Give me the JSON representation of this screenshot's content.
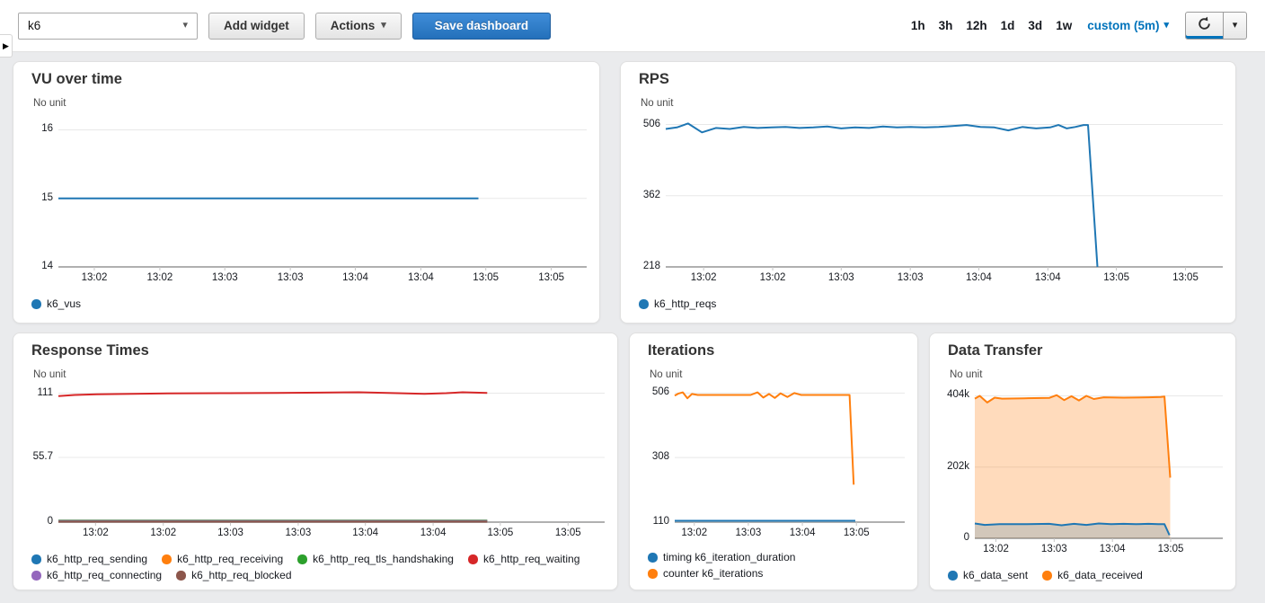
{
  "toolbar": {
    "dashboard_name": "k6",
    "add_widget": "Add widget",
    "actions": "Actions",
    "save_dashboard": "Save dashboard",
    "time_ranges": [
      "1h",
      "3h",
      "12h",
      "1d",
      "3d",
      "1w"
    ],
    "custom_range": "custom (5m)",
    "link_color": "#0073bb"
  },
  "icons": {
    "sidebar_expand": "▶",
    "caret_down": "▾"
  },
  "palette": {
    "blue": "#1f77b4",
    "orange": "#ff7f0e",
    "green": "#2ca02c",
    "red": "#d62728",
    "purple": "#9467bd",
    "brown": "#8c564b"
  },
  "chart_data": [
    {
      "type": "line",
      "title": "VU over time",
      "unit_label": "No unit",
      "ylim": [
        14,
        16.15
      ],
      "yticks": [
        {
          "value": 16,
          "label": "16"
        },
        {
          "value": 15,
          "label": "15"
        },
        {
          "value": 14,
          "label": "14"
        }
      ],
      "xticks": [
        {
          "f": 0.068,
          "label": "13:02"
        },
        {
          "f": 0.192,
          "label": "13:02"
        },
        {
          "f": 0.315,
          "label": "13:03"
        },
        {
          "f": 0.439,
          "label": "13:03"
        },
        {
          "f": 0.562,
          "label": "13:04"
        },
        {
          "f": 0.686,
          "label": "13:04"
        },
        {
          "f": 0.809,
          "label": "13:05"
        },
        {
          "f": 0.933,
          "label": "13:05"
        }
      ],
      "series": [
        {
          "name": "k6_vus",
          "color": "#1f77b4",
          "fill": false,
          "points": [
            [
              0,
              15
            ],
            [
              0.795,
              15
            ]
          ]
        }
      ],
      "legend": [
        {
          "label": "k6_vus",
          "color": "#1f77b4"
        }
      ]
    },
    {
      "type": "line",
      "title": "RPS",
      "unit_label": "No unit",
      "ylim": [
        218,
        516
      ],
      "yticks": [
        {
          "value": 506,
          "label": "506"
        },
        {
          "value": 362,
          "label": "362"
        },
        {
          "value": 218,
          "label": "218"
        }
      ],
      "xticks": [
        {
          "f": 0.068,
          "label": "13:02"
        },
        {
          "f": 0.192,
          "label": "13:02"
        },
        {
          "f": 0.315,
          "label": "13:03"
        },
        {
          "f": 0.439,
          "label": "13:03"
        },
        {
          "f": 0.562,
          "label": "13:04"
        },
        {
          "f": 0.686,
          "label": "13:04"
        },
        {
          "f": 0.809,
          "label": "13:05"
        },
        {
          "f": 0.933,
          "label": "13:05"
        }
      ],
      "series": [
        {
          "name": "k6_http_reqs",
          "color": "#1f77b4",
          "fill": false,
          "points": [
            [
              0,
              497
            ],
            [
              0.02,
              500
            ],
            [
              0.04,
              508
            ],
            [
              0.065,
              490
            ],
            [
              0.09,
              499
            ],
            [
              0.115,
              497
            ],
            [
              0.14,
              501
            ],
            [
              0.165,
              499
            ],
            [
              0.19,
              500
            ],
            [
              0.215,
              501
            ],
            [
              0.24,
              499
            ],
            [
              0.265,
              500
            ],
            [
              0.29,
              502
            ],
            [
              0.315,
              498
            ],
            [
              0.34,
              500
            ],
            [
              0.365,
              499
            ],
            [
              0.39,
              502
            ],
            [
              0.415,
              500
            ],
            [
              0.44,
              501
            ],
            [
              0.465,
              500
            ],
            [
              0.49,
              501
            ],
            [
              0.515,
              503
            ],
            [
              0.54,
              505
            ],
            [
              0.565,
              501
            ],
            [
              0.59,
              500
            ],
            [
              0.615,
              494
            ],
            [
              0.64,
              501
            ],
            [
              0.665,
              498
            ],
            [
              0.69,
              500
            ],
            [
              0.705,
              505
            ],
            [
              0.72,
              498
            ],
            [
              0.735,
              501
            ],
            [
              0.75,
              505
            ],
            [
              0.758,
              505
            ],
            [
              0.775,
              218
            ]
          ]
        }
      ],
      "legend": [
        {
          "label": "k6_http_reqs",
          "color": "#1f77b4"
        }
      ]
    },
    {
      "type": "line",
      "title": "Response Times",
      "unit_label": "No unit",
      "ylim": [
        0,
        114.5
      ],
      "yticks": [
        {
          "value": 111,
          "label": "111"
        },
        {
          "value": 55.7,
          "label": "55.7"
        },
        {
          "value": 0,
          "label": "0"
        }
      ],
      "xticks": [
        {
          "f": 0.068,
          "label": "13:02"
        },
        {
          "f": 0.192,
          "label": "13:02"
        },
        {
          "f": 0.315,
          "label": "13:03"
        },
        {
          "f": 0.439,
          "label": "13:03"
        },
        {
          "f": 0.562,
          "label": "13:04"
        },
        {
          "f": 0.686,
          "label": "13:04"
        },
        {
          "f": 0.809,
          "label": "13:05"
        },
        {
          "f": 0.933,
          "label": "13:05"
        }
      ],
      "series": [
        {
          "name": "k6_http_req_sending",
          "color": "#1f77b4",
          "fill": false,
          "points": [
            [
              0,
              1.4
            ],
            [
              0.785,
              1.4
            ]
          ]
        },
        {
          "name": "k6_http_req_receiving",
          "color": "#ff7f0e",
          "fill": false,
          "points": [
            [
              0,
              1.1
            ],
            [
              0.785,
              1.1
            ]
          ]
        },
        {
          "name": "k6_http_req_tls_handshaking",
          "color": "#2ca02c",
          "fill": false,
          "points": [
            [
              0,
              0.9
            ],
            [
              0.785,
              0.9
            ]
          ]
        },
        {
          "name": "k6_http_req_waiting",
          "color": "#d62728",
          "fill": false,
          "points": [
            [
              0,
              108.5
            ],
            [
              0.03,
              109.5
            ],
            [
              0.07,
              110
            ],
            [
              0.12,
              110.3
            ],
            [
              0.2,
              110.8
            ],
            [
              0.3,
              111
            ],
            [
              0.4,
              111.2
            ],
            [
              0.48,
              111.5
            ],
            [
              0.55,
              111.8
            ],
            [
              0.62,
              111
            ],
            [
              0.67,
              110.5
            ],
            [
              0.71,
              111
            ],
            [
              0.74,
              111.8
            ],
            [
              0.785,
              111.2
            ]
          ]
        },
        {
          "name": "k6_http_req_connecting",
          "color": "#9467bd",
          "fill": false,
          "points": [
            [
              0,
              0.7
            ],
            [
              0.785,
              0.7
            ]
          ]
        },
        {
          "name": "k6_http_req_blocked",
          "color": "#8c564b",
          "fill": false,
          "points": [
            [
              0,
              0.4
            ],
            [
              0.785,
              0.4
            ]
          ]
        }
      ],
      "legend": [
        {
          "label": "k6_http_req_sending",
          "color": "#1f77b4"
        },
        {
          "label": "k6_http_req_receiving",
          "color": "#ff7f0e"
        },
        {
          "label": "k6_http_req_tls_handshaking",
          "color": "#2ca02c"
        },
        {
          "label": "k6_http_req_waiting",
          "color": "#d62728"
        },
        {
          "label": "k6_http_req_connecting",
          "color": "#9467bd"
        },
        {
          "label": "k6_http_req_blocked",
          "color": "#8c564b"
        }
      ]
    },
    {
      "type": "line",
      "title": "Iterations",
      "unit_label": "No unit",
      "ylim": [
        110,
        518
      ],
      "yticks": [
        {
          "value": 506,
          "label": "506"
        },
        {
          "value": 308,
          "label": "308"
        },
        {
          "value": 110,
          "label": "110"
        }
      ],
      "xticks": [
        {
          "f": 0.085,
          "label": "13:02"
        },
        {
          "f": 0.32,
          "label": "13:03"
        },
        {
          "f": 0.555,
          "label": "13:04"
        },
        {
          "f": 0.79,
          "label": "13:05"
        }
      ],
      "series": [
        {
          "name": "timing k6_iteration_duration",
          "color": "#1f77b4",
          "fill": false,
          "points": [
            [
              0,
              114
            ],
            [
              0.785,
              114
            ]
          ]
        },
        {
          "name": "counter k6_iterations",
          "color": "#ff7f0e",
          "fill": false,
          "points": [
            [
              0,
              498
            ],
            [
              0.015,
              504
            ],
            [
              0.035,
              508
            ],
            [
              0.055,
              490
            ],
            [
              0.075,
              503
            ],
            [
              0.1,
              500
            ],
            [
              0.2,
              500
            ],
            [
              0.3,
              500
            ],
            [
              0.33,
              500
            ],
            [
              0.36,
              508
            ],
            [
              0.385,
              492
            ],
            [
              0.41,
              503
            ],
            [
              0.435,
              491
            ],
            [
              0.46,
              505
            ],
            [
              0.49,
              494
            ],
            [
              0.52,
              506
            ],
            [
              0.55,
              500
            ],
            [
              0.6,
              500
            ],
            [
              0.7,
              500
            ],
            [
              0.745,
              500
            ],
            [
              0.76,
              500
            ],
            [
              0.778,
              225
            ]
          ]
        }
      ],
      "legend": [
        {
          "label": "timing k6_iteration_duration",
          "color": "#1f77b4"
        },
        {
          "label": "counter k6_iterations",
          "color": "#ff7f0e"
        }
      ]
    },
    {
      "type": "area",
      "title": "Data Transfer",
      "unit_label": "No unit",
      "ylim": [
        0,
        418
      ],
      "yticks": [
        {
          "value": 404,
          "label": "404k"
        },
        {
          "value": 202,
          "label": "202k"
        },
        {
          "value": 0,
          "label": "0"
        }
      ],
      "xticks": [
        {
          "f": 0.085,
          "label": "13:02"
        },
        {
          "f": 0.32,
          "label": "13:03"
        },
        {
          "f": 0.555,
          "label": "13:04"
        },
        {
          "f": 0.79,
          "label": "13:05"
        }
      ],
      "series": [
        {
          "name": "k6_data_received",
          "color": "#ff7f0e",
          "fill": true,
          "fill_opacity": 0.28,
          "points": [
            [
              0,
              396
            ],
            [
              0.02,
              404
            ],
            [
              0.05,
              385
            ],
            [
              0.08,
              399
            ],
            [
              0.11,
              396
            ],
            [
              0.2,
              397
            ],
            [
              0.3,
              398
            ],
            [
              0.33,
              406
            ],
            [
              0.36,
              392
            ],
            [
              0.39,
              403
            ],
            [
              0.42,
              391
            ],
            [
              0.45,
              404
            ],
            [
              0.48,
              395
            ],
            [
              0.52,
              400
            ],
            [
              0.6,
              399
            ],
            [
              0.7,
              400
            ],
            [
              0.75,
              401
            ],
            [
              0.765,
              402
            ],
            [
              0.788,
              172
            ]
          ]
        },
        {
          "name": "k6_data_sent",
          "color": "#1f77b4",
          "fill": true,
          "fill_opacity": 0.2,
          "points": [
            [
              0,
              42
            ],
            [
              0.04,
              38
            ],
            [
              0.1,
              40
            ],
            [
              0.2,
              40
            ],
            [
              0.3,
              41
            ],
            [
              0.35,
              37
            ],
            [
              0.4,
              41
            ],
            [
              0.45,
              38
            ],
            [
              0.5,
              42
            ],
            [
              0.55,
              40
            ],
            [
              0.6,
              41
            ],
            [
              0.65,
              40
            ],
            [
              0.7,
              41
            ],
            [
              0.74,
              40
            ],
            [
              0.765,
              40
            ],
            [
              0.785,
              9
            ]
          ]
        }
      ],
      "legend": [
        {
          "label": "k6_data_sent",
          "color": "#1f77b4"
        },
        {
          "label": "k6_data_received",
          "color": "#ff7f0e"
        }
      ]
    }
  ]
}
